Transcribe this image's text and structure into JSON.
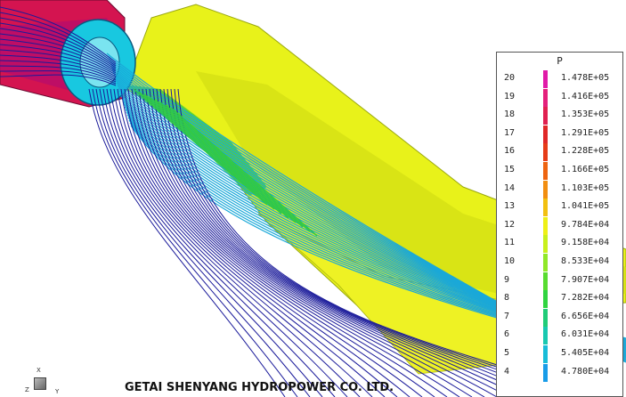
{
  "legend": {
    "title": "P",
    "levels": [
      {
        "index": "20",
        "value": "1.478E+05",
        "color": "#e01aa8"
      },
      {
        "index": "19",
        "value": "1.416E+05",
        "color": "#e4207c"
      },
      {
        "index": "18",
        "value": "1.353E+05",
        "color": "#e02050"
      },
      {
        "index": "17",
        "value": "1.291E+05",
        "color": "#e02828"
      },
      {
        "index": "16",
        "value": "1.228E+05",
        "color": "#e63c18"
      },
      {
        "index": "15",
        "value": "1.166E+05",
        "color": "#ee6410"
      },
      {
        "index": "14",
        "value": "1.103E+05",
        "color": "#f28e10"
      },
      {
        "index": "13",
        "value": "1.041E+05",
        "color": "#f2c010"
      },
      {
        "index": "12",
        "value": "9.784E+04",
        "color": "#eef016"
      },
      {
        "index": "11",
        "value": "9.158E+04",
        "color": "#c8f01c"
      },
      {
        "index": "10",
        "value": "8.533E+04",
        "color": "#90e828"
      },
      {
        "index": "9",
        "value": "7.907E+04",
        "color": "#58dc30"
      },
      {
        "index": "8",
        "value": "7.282E+04",
        "color": "#30d440"
      },
      {
        "index": "7",
        "value": "6.656E+04",
        "color": "#20cc78"
      },
      {
        "index": "6",
        "value": "6.031E+04",
        "color": "#18c8b0"
      },
      {
        "index": "5",
        "value": "5.405E+04",
        "color": "#18bcd8"
      },
      {
        "index": "4",
        "value": "4.780E+04",
        "color": "#189ce8"
      }
    ]
  },
  "axis_triad": {
    "x": "X",
    "y": "Y",
    "z": "Z"
  },
  "footer": {
    "company": "GETAI SHENYANG HYDROPOWER CO. LTD."
  },
  "colors": {
    "pipe_yellow": "#e8f21a",
    "pipe_yellow_dark": "#b8c414",
    "inlet_red": "#d81450",
    "inlet_magenta": "#c8107a",
    "runner_cyan": "#18c8e0",
    "streamline_blue": "#1a1a9a",
    "streamline_cyan": "#1aa8d8",
    "streamline_green": "#30c848"
  }
}
